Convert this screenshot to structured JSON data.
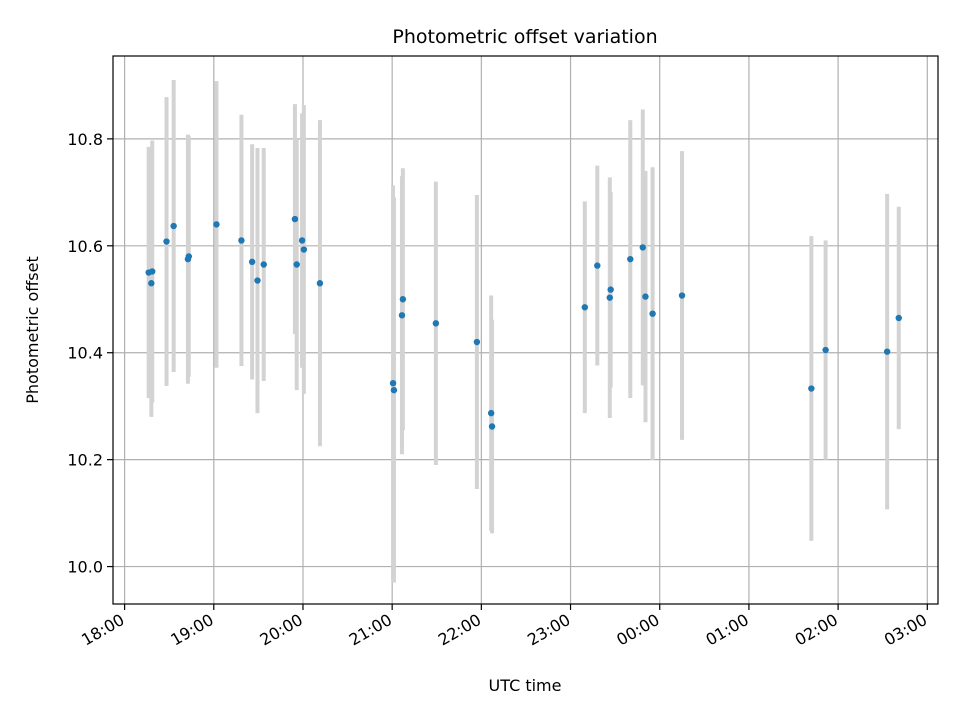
{
  "chart_data": {
    "type": "scatter",
    "title": "Photometric offset variation",
    "xlabel": "UTC time",
    "ylabel": "Photometric offset",
    "x_unit": "hours since 18:00 UTC",
    "xlim": [
      -0.13,
      9.12
    ],
    "ylim": [
      9.93,
      10.955
    ],
    "grid": true,
    "x_ticks": [
      {
        "value": 0,
        "label": "18:00"
      },
      {
        "value": 1,
        "label": "19:00"
      },
      {
        "value": 2,
        "label": "20:00"
      },
      {
        "value": 3,
        "label": "21:00"
      },
      {
        "value": 4,
        "label": "22:00"
      },
      {
        "value": 5,
        "label": "23:00"
      },
      {
        "value": 6,
        "label": "00:00"
      },
      {
        "value": 7,
        "label": "01:00"
      },
      {
        "value": 8,
        "label": "02:00"
      },
      {
        "value": 9,
        "label": "03:00"
      }
    ],
    "y_ticks": [
      {
        "value": 10.0,
        "label": "10.0"
      },
      {
        "value": 10.2,
        "label": "10.2"
      },
      {
        "value": 10.4,
        "label": "10.4"
      },
      {
        "value": 10.6,
        "label": "10.6"
      },
      {
        "value": 10.8,
        "label": "10.8"
      }
    ],
    "colors": {
      "point": "#1f77b4",
      "errorbar": "#d3d3d3",
      "grid": "#b0b0b0"
    },
    "points": [
      {
        "x": 0.27,
        "y": 10.55,
        "yerr": 0.235
      },
      {
        "x": 0.3,
        "y": 10.53,
        "yerr": 0.25
      },
      {
        "x": 0.31,
        "y": 10.552,
        "yerr": 0.245
      },
      {
        "x": 0.47,
        "y": 10.608,
        "yerr": 0.27
      },
      {
        "x": 0.55,
        "y": 10.637,
        "yerr": 0.273
      },
      {
        "x": 0.71,
        "y": 10.575,
        "yerr": 0.233
      },
      {
        "x": 0.72,
        "y": 10.58,
        "yerr": 0.225
      },
      {
        "x": 1.03,
        "y": 10.64,
        "yerr": 0.268
      },
      {
        "x": 1.31,
        "y": 10.61,
        "yerr": 0.235
      },
      {
        "x": 1.43,
        "y": 10.57,
        "yerr": 0.22
      },
      {
        "x": 1.49,
        "y": 10.535,
        "yerr": 0.248
      },
      {
        "x": 1.56,
        "y": 10.565,
        "yerr": 0.218
      },
      {
        "x": 1.91,
        "y": 10.65,
        "yerr": 0.215
      },
      {
        "x": 1.93,
        "y": 10.565,
        "yerr": 0.235
      },
      {
        "x": 1.99,
        "y": 10.61,
        "yerr": 0.238
      },
      {
        "x": 2.01,
        "y": 10.593,
        "yerr": 0.27
      },
      {
        "x": 2.19,
        "y": 10.53,
        "yerr": 0.305
      },
      {
        "x": 3.01,
        "y": 10.343,
        "yerr": 0.37
      },
      {
        "x": 3.02,
        "y": 10.33,
        "yerr": 0.36
      },
      {
        "x": 3.11,
        "y": 10.47,
        "yerr": 0.26
      },
      {
        "x": 3.12,
        "y": 10.5,
        "yerr": 0.245
      },
      {
        "x": 3.49,
        "y": 10.455,
        "yerr": 0.265
      },
      {
        "x": 3.95,
        "y": 10.42,
        "yerr": 0.275
      },
      {
        "x": 4.11,
        "y": 10.287,
        "yerr": 0.22
      },
      {
        "x": 4.12,
        "y": 10.262,
        "yerr": 0.2
      },
      {
        "x": 5.16,
        "y": 10.485,
        "yerr": 0.198
      },
      {
        "x": 5.3,
        "y": 10.563,
        "yerr": 0.187
      },
      {
        "x": 5.44,
        "y": 10.503,
        "yerr": 0.225
      },
      {
        "x": 5.45,
        "y": 10.518,
        "yerr": 0.183
      },
      {
        "x": 5.67,
        "y": 10.575,
        "yerr": 0.26
      },
      {
        "x": 5.81,
        "y": 10.597,
        "yerr": 0.258
      },
      {
        "x": 5.84,
        "y": 10.505,
        "yerr": 0.235
      },
      {
        "x": 5.92,
        "y": 10.473,
        "yerr": 0.274
      },
      {
        "x": 6.25,
        "y": 10.507,
        "yerr": 0.27
      },
      {
        "x": 7.7,
        "y": 10.333,
        "yerr": 0.285
      },
      {
        "x": 7.86,
        "y": 10.405,
        "yerr": 0.205
      },
      {
        "x": 8.55,
        "y": 10.402,
        "yerr": 0.295
      },
      {
        "x": 8.68,
        "y": 10.465,
        "yerr": 0.208
      }
    ]
  }
}
